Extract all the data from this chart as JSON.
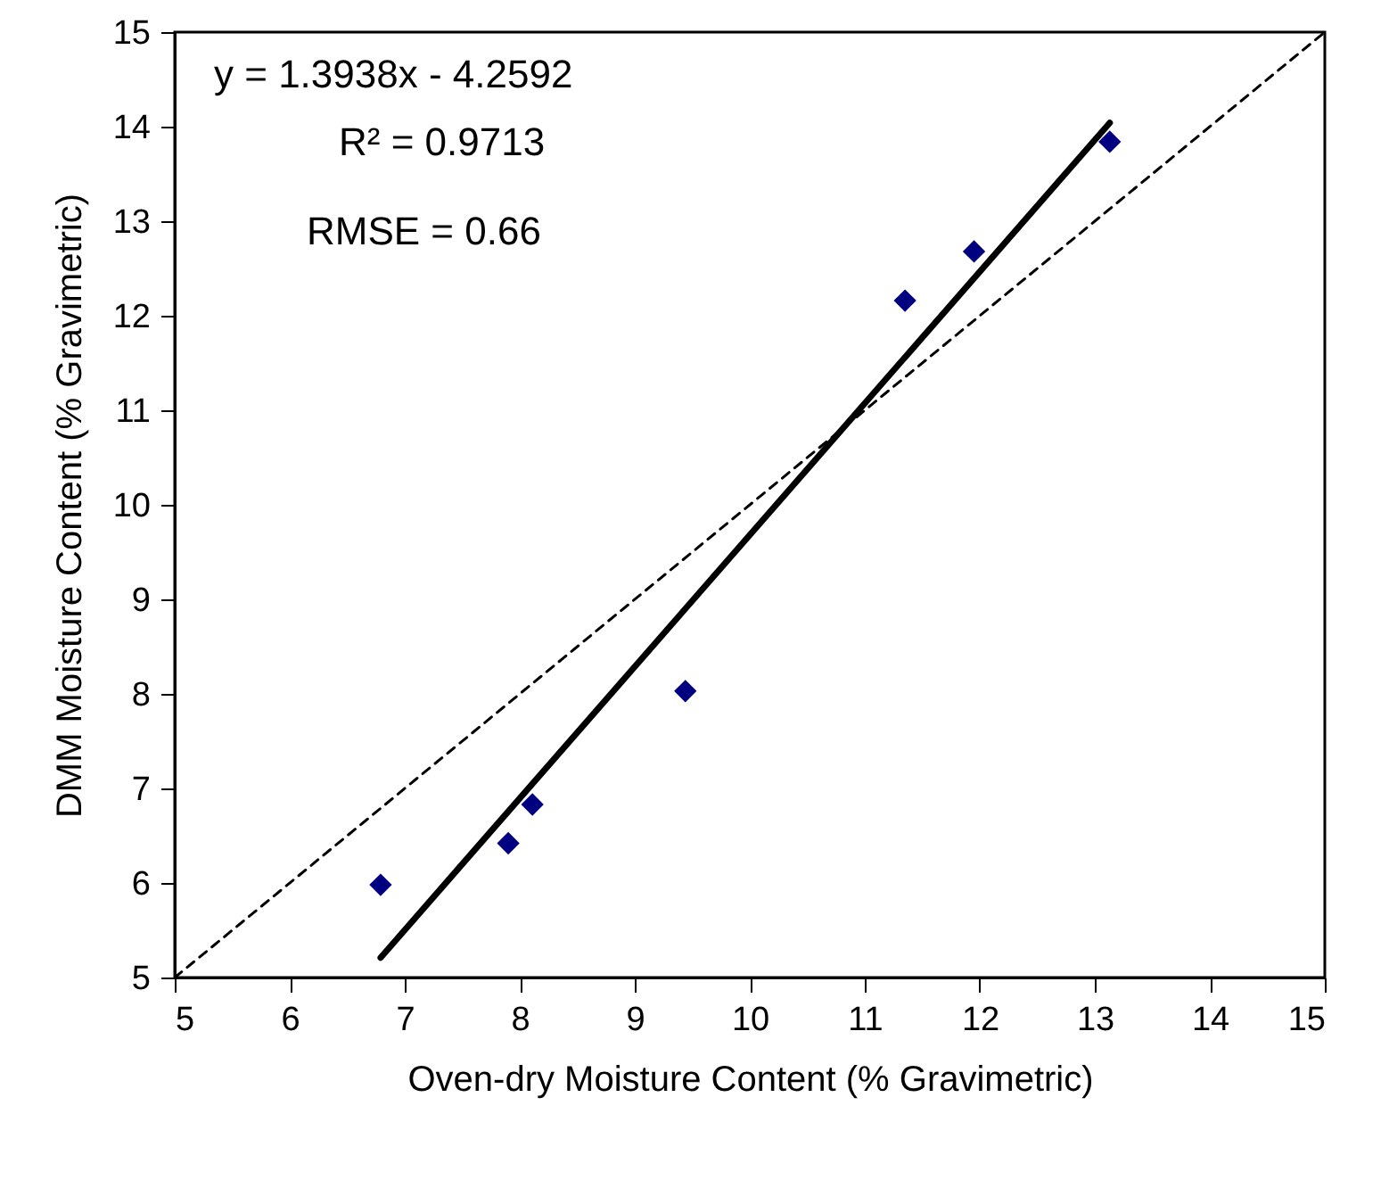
{
  "chart_data": {
    "type": "scatter",
    "xlabel": "Oven-dry Moisture Content (% Gravimetric)",
    "ylabel": "DMM Moisture Content (% Gravimetric)",
    "xlim": [
      5,
      15
    ],
    "ylim": [
      5,
      15
    ],
    "xticks": [
      5,
      6,
      7,
      8,
      9,
      10,
      11,
      12,
      13,
      14,
      15
    ],
    "yticks": [
      5,
      6,
      7,
      8,
      9,
      10,
      11,
      12,
      13,
      14,
      15
    ],
    "grid": false,
    "series": [
      {
        "marker": "diamond",
        "color": "#000080",
        "x": [
          6.79,
          7.9,
          8.11,
          9.44,
          11.35,
          11.95,
          13.13
        ],
        "values": [
          5.98,
          6.42,
          6.83,
          8.03,
          12.16,
          12.68,
          13.84
        ]
      },
      {
        "type": "line",
        "marker": "none",
        "color": "#000000",
        "line_style": "solid",
        "x": [
          6.79,
          13.13
        ],
        "values": [
          5.21,
          14.04
        ]
      },
      {
        "type": "line",
        "marker": "none",
        "color": "#000000",
        "line_style": "dashed",
        "x": [
          5,
          15
        ],
        "values": [
          5,
          15
        ]
      }
    ],
    "annotations": [
      "y = 1.3938x - 4.2592",
      "R² = 0.9713",
      "RMSE = 0.66"
    ]
  }
}
